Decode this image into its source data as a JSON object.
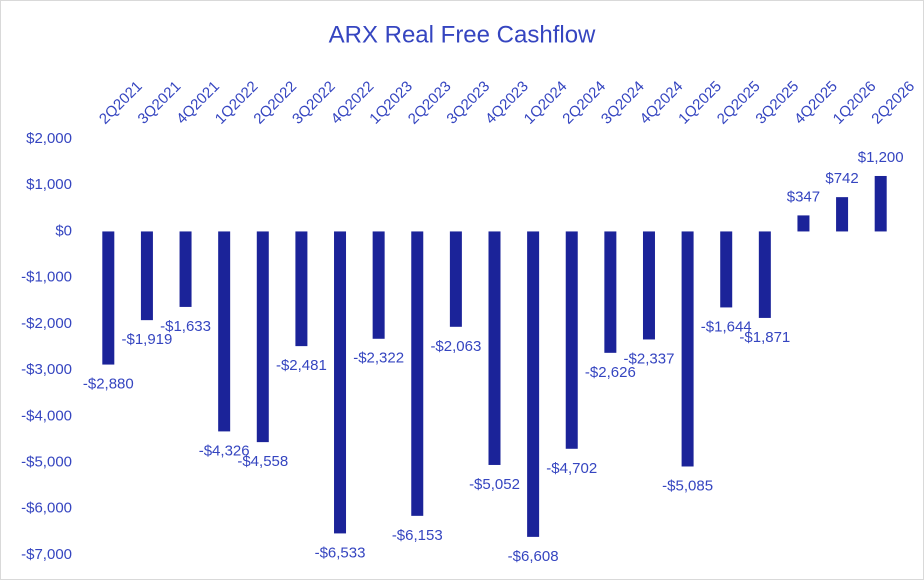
{
  "chart_data": {
    "type": "bar",
    "title": "ARX Real Free Cashflow",
    "categories": [
      "2Q2021",
      "3Q2021",
      "4Q2021",
      "1Q2022",
      "2Q2022",
      "3Q2022",
      "4Q2022",
      "1Q2023",
      "2Q2023",
      "3Q2023",
      "4Q2023",
      "1Q2024",
      "2Q2024",
      "3Q2024",
      "4Q2024",
      "1Q2025",
      "2Q2025",
      "3Q2025",
      "4Q2025",
      "1Q2026",
      "2Q2026"
    ],
    "values": [
      -2880,
      -1919,
      -1633,
      -4326,
      -4558,
      -2481,
      -6533,
      -2322,
      -6153,
      -2063,
      -5052,
      -6608,
      -4702,
      -2626,
      -2337,
      -5085,
      -1644,
      -1871,
      347,
      742,
      1200
    ],
    "value_labels": [
      "-$2,880",
      "-$1,919",
      "-$1,633",
      "-$4,326",
      "-$4,558",
      "-$2,481",
      "-$6,533",
      "-$2,322",
      "-$6,153",
      "-$2,063",
      "-$5,052",
      "-$6,608",
      "-$4,702",
      "-$2,626",
      "-$2,337",
      "-$5,085",
      "-$1,644",
      "-$1,871",
      "$347",
      "$742",
      "$1,200"
    ],
    "color": "#1b2399",
    "ylim": [
      -7000,
      2000
    ],
    "yticks": [
      {
        "value": 2000,
        "label": "$2,000"
      },
      {
        "value": 1000,
        "label": "$1,000"
      },
      {
        "value": 0,
        "label": "$0"
      },
      {
        "value": -1000,
        "label": "-$1,000"
      },
      {
        "value": -2000,
        "label": "-$2,000"
      },
      {
        "value": -3000,
        "label": "-$3,000"
      },
      {
        "value": -4000,
        "label": "-$4,000"
      },
      {
        "value": -5000,
        "label": "-$5,000"
      },
      {
        "value": -6000,
        "label": "-$6,000"
      },
      {
        "value": -7000,
        "label": "-$7,000"
      }
    ],
    "grid": false
  }
}
